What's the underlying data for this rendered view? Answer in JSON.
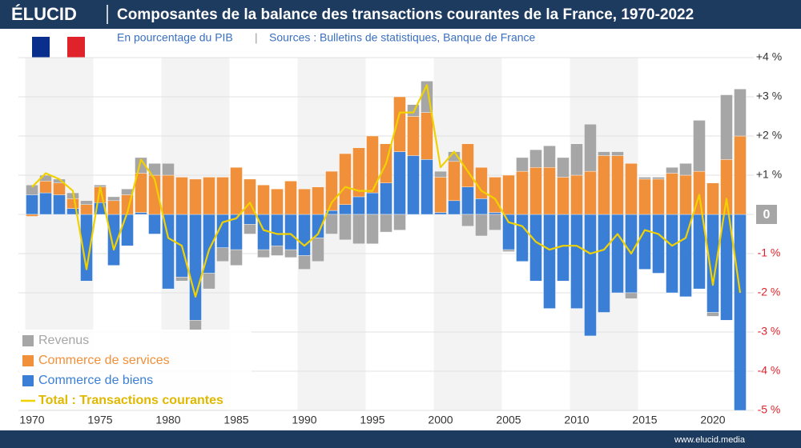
{
  "header": {
    "brand": "ÉLUCID",
    "title": "Composantes de la balance des transactions courantes de la France, 1970-2022",
    "footer": "www.elucid.media"
  },
  "chart_data": {
    "type": "bar",
    "subtitle": "En pourcentage du PIB",
    "source": "Sources : Bulletins de statistiques, Banque de France",
    "x": [
      1970,
      1971,
      1972,
      1973,
      1974,
      1975,
      1976,
      1977,
      1978,
      1979,
      1980,
      1981,
      1982,
      1983,
      1984,
      1985,
      1986,
      1987,
      1988,
      1989,
      1990,
      1991,
      1992,
      1993,
      1994,
      1995,
      1996,
      1997,
      1998,
      1999,
      2000,
      2001,
      2002,
      2003,
      2004,
      2005,
      2006,
      2007,
      2008,
      2009,
      2010,
      2011,
      2012,
      2013,
      2014,
      2015,
      2016,
      2017,
      2018,
      2019,
      2020,
      2021,
      2022
    ],
    "series": [
      {
        "name": "Commerce de biens",
        "color": "#3a7fd5",
        "values": [
          0.5,
          0.55,
          0.5,
          0.15,
          -1.7,
          0.3,
          -1.3,
          -0.8,
          0.05,
          -0.5,
          -1.9,
          -1.6,
          -2.7,
          -1.5,
          -0.85,
          -0.9,
          -0.25,
          -0.9,
          -0.8,
          -0.9,
          -1.05,
          -0.6,
          0.1,
          0.25,
          0.45,
          0.55,
          0.8,
          1.6,
          1.5,
          1.4,
          0.05,
          0.35,
          0.7,
          0.4,
          0.05,
          -0.9,
          -1.2,
          -1.7,
          -2.4,
          -1.7,
          -2.4,
          -3.1,
          -2.5,
          -2.0,
          -2.0,
          -1.4,
          -1.5,
          -2.0,
          -2.1,
          -1.9,
          -2.5,
          -2.7,
          -5.0
        ]
      },
      {
        "name": "Commerce de services",
        "color": "#f0903a",
        "values": [
          -0.05,
          0.3,
          0.3,
          0.25,
          0.25,
          0.4,
          0.35,
          0.5,
          1.0,
          1.0,
          1.0,
          0.95,
          0.9,
          0.95,
          0.95,
          1.2,
          0.9,
          0.75,
          0.65,
          0.85,
          0.65,
          0.7,
          1.0,
          1.3,
          1.25,
          1.45,
          1.0,
          1.4,
          1.0,
          1.2,
          0.9,
          1.0,
          1.1,
          0.8,
          0.9,
          1.0,
          1.1,
          1.2,
          1.2,
          0.95,
          1.0,
          1.1,
          1.5,
          1.5,
          1.3,
          0.9,
          0.9,
          1.05,
          1.0,
          1.1,
          0.8,
          1.4,
          2.0
        ]
      },
      {
        "name": "Revenus",
        "color": "#a6a6a6",
        "values": [
          0.25,
          0.15,
          0.1,
          0.15,
          0.1,
          0.05,
          0.1,
          0.15,
          0.4,
          0.3,
          0.3,
          -0.1,
          -0.25,
          -0.4,
          -0.35,
          -0.4,
          -0.25,
          -0.2,
          -0.25,
          -0.2,
          -0.35,
          -0.6,
          -0.5,
          -0.65,
          -0.75,
          -0.75,
          -0.45,
          -0.4,
          0.3,
          0.8,
          0.15,
          0.25,
          -0.3,
          -0.55,
          -0.4,
          -0.05,
          0.35,
          0.45,
          0.55,
          0.5,
          0.8,
          1.2,
          0.1,
          0.1,
          -0.15,
          0.05,
          0.05,
          0.15,
          0.3,
          1.3,
          -0.1,
          1.65,
          1.2
        ]
      },
      {
        "name": "Total : Transactions courantes",
        "color": "#f2d100",
        "type": "line",
        "values": [
          0.7,
          1.05,
          0.9,
          0.6,
          -1.4,
          0.7,
          -0.9,
          0.05,
          1.4,
          0.9,
          -0.6,
          -0.8,
          -2.1,
          -0.9,
          -0.2,
          -0.1,
          0.3,
          -0.4,
          -0.5,
          -0.5,
          -0.8,
          -0.5,
          0.3,
          0.7,
          0.6,
          0.6,
          1.3,
          2.6,
          2.6,
          3.3,
          1.2,
          1.6,
          1.1,
          0.6,
          0.4,
          -0.2,
          -0.3,
          -0.7,
          -0.9,
          -0.8,
          -0.8,
          -1.0,
          -0.9,
          -0.5,
          -1.0,
          -0.4,
          -0.5,
          -0.8,
          -0.6,
          0.5,
          -1.8,
          0.4,
          -2.0
        ]
      }
    ],
    "legend_order": [
      "Revenus",
      "Commerce de services",
      "Commerce de biens",
      "Total : Transactions courantes"
    ],
    "xlim": [
      1969,
      2023
    ],
    "xticks": [
      1970,
      1975,
      1980,
      1985,
      1990,
      1995,
      2000,
      2005,
      2010,
      2015,
      2020
    ],
    "ylim": [
      -5,
      4
    ],
    "yticks": [
      {
        "value": 4,
        "label": "+4 %"
      },
      {
        "value": 3,
        "label": "+3 %"
      },
      {
        "value": 2,
        "label": "+2 %"
      },
      {
        "value": 1,
        "label": "+1 %"
      },
      0,
      {
        "value": -1,
        "label": "-1 %"
      },
      {
        "value": -2,
        "label": "-2 %"
      },
      {
        "value": -3,
        "label": "-3 %"
      },
      {
        "value": -4,
        "label": "-4 %"
      },
      {
        "value": -5,
        "label": "-5 %"
      }
    ],
    "grid": true
  }
}
